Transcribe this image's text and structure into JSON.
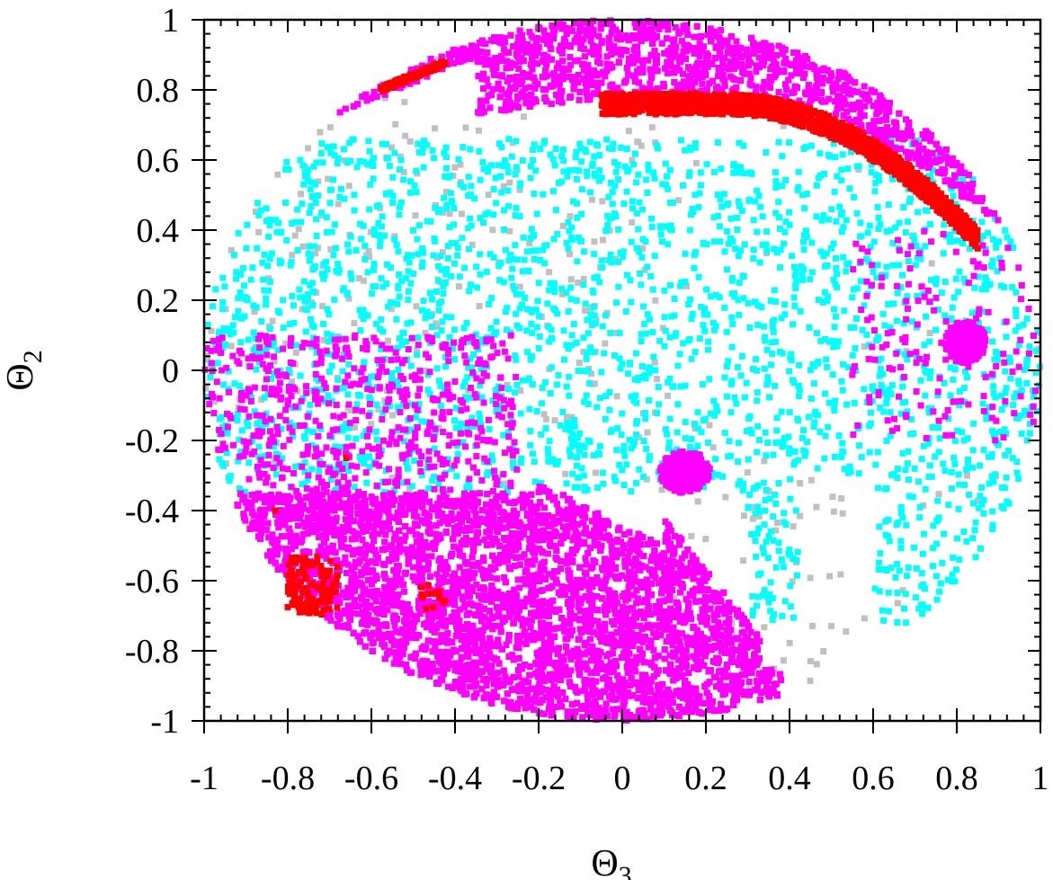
{
  "chart_data": {
    "type": "scatter",
    "title": "",
    "xlabel": "Θ",
    "xlabel_subscript": "3",
    "ylabel": "Θ",
    "ylabel_subscript": "2",
    "xlim": [
      -1,
      1
    ],
    "ylim": [
      -1,
      1
    ],
    "grid": false,
    "legend": "none",
    "x_ticks": [
      -1,
      -0.8,
      -0.6,
      -0.4,
      -0.2,
      0,
      0.2,
      0.4,
      0.6,
      0.8,
      1
    ],
    "x_tick_labels": [
      "-1",
      "-0.8",
      "-0.6",
      "-0.4",
      "-0.2",
      "0",
      "0.2",
      "0.4",
      "0.6",
      "0.8",
      "1"
    ],
    "y_ticks": [
      1,
      0.8,
      0.6,
      0.4,
      0.2,
      0,
      -0.2,
      -0.4,
      -0.6,
      -0.8,
      -1
    ],
    "y_tick_labels": [
      "1",
      "0.8",
      "0.6",
      "0.4",
      "0.2",
      "0",
      "-0.2",
      "-0.4",
      "-0.6",
      "-0.8",
      "-1"
    ],
    "series": [
      {
        "color": "#c0c0c0",
        "marker": "square",
        "description_points": [
          [
            -0.7,
            0.5
          ],
          [
            -0.6,
            0.35
          ],
          [
            -0.5,
            0.1
          ],
          [
            -0.3,
            0.05
          ],
          [
            -0.1,
            -0.05
          ],
          [
            0.0,
            -0.1
          ],
          [
            0.2,
            -0.3
          ],
          [
            0.3,
            -0.5
          ],
          [
            0.35,
            -0.7
          ],
          [
            0.4,
            -0.85
          ],
          [
            -0.9,
            0.2
          ],
          [
            -0.8,
            -0.1
          ],
          [
            0.1,
            0.3
          ],
          [
            0.3,
            0.2
          ],
          [
            0.45,
            -0.55
          ],
          [
            0.5,
            -0.45
          ],
          [
            -0.6,
            0.6
          ],
          [
            -0.5,
            0.7
          ],
          [
            0.15,
            -0.2
          ],
          [
            -0.2,
            0.1
          ]
        ],
        "values_regions": [
          {
            "x_range": [
              -0.95,
              0.0
            ],
            "y_range": [
              -0.2,
              0.7
            ],
            "density": 0.3
          },
          {
            "x_range": [
              0.1,
              0.5
            ],
            "y_range": [
              -0.9,
              -0.4
            ],
            "density": 0.4
          }
        ]
      },
      {
        "color": "#00ffff",
        "marker": "square",
        "values_regions": [
          {
            "x_range": [
              -1.0,
              1.0
            ],
            "y_range": [
              -0.7,
              0.65
            ],
            "density": 0.6
          }
        ]
      },
      {
        "color": "#ff00ff",
        "marker": "square",
        "values_regions": [
          {
            "shape": "top-band",
            "x_range": [
              -0.68,
              0.95
            ],
            "y_range": [
              0.4,
              1.0
            ]
          },
          {
            "shape": "bottom-blob",
            "x_range": [
              -0.9,
              0.35
            ],
            "y_range": [
              -1.0,
              -0.35
            ]
          },
          {
            "shape": "scatter",
            "x_range": [
              -1.0,
              -0.3
            ],
            "y_range": [
              -0.4,
              0.1
            ]
          },
          {
            "shape": "scatter",
            "x_range": [
              0.6,
              1.0
            ],
            "y_range": [
              -0.2,
              0.4
            ]
          }
        ]
      },
      {
        "color": "#ff0000",
        "marker": "square",
        "values_regions": [
          {
            "shape": "arc",
            "x_range": [
              -0.05,
              0.85
            ],
            "y_range": [
              0.45,
              0.83
            ]
          },
          {
            "shape": "arc",
            "x_range": [
              -0.6,
              -0.42
            ],
            "y_range": [
              0.79,
              0.89
            ]
          },
          {
            "shape": "cluster",
            "x_range": [
              -0.8,
              -0.68
            ],
            "y_range": [
              -0.7,
              -0.52
            ]
          },
          {
            "shape": "cluster",
            "x_range": [
              -0.5,
              -0.42
            ],
            "y_range": [
              -0.7,
              -0.62
            ]
          }
        ]
      }
    ]
  }
}
